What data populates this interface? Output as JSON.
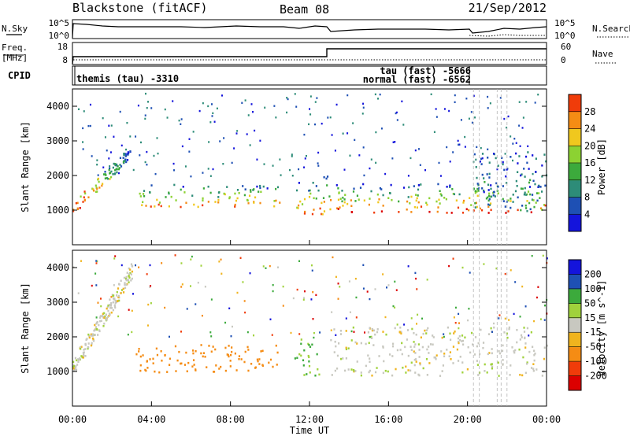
{
  "header": {
    "title": "Blackstone (fitACF)",
    "beam": "Beam 08",
    "date": "21/Sep/2012"
  },
  "nsky_panel": {
    "left_label": "N.Sky",
    "right_label": "N.Search",
    "left_ticks": [
      "10^5",
      "10^0"
    ],
    "right_ticks": [
      "10^5",
      "10^0"
    ]
  },
  "freq_panel": {
    "left_label_line1": "Freq.",
    "left_label_line2": "[MHz]",
    "right_label": "Nave",
    "left_ticks": [
      "18",
      "8"
    ],
    "right_ticks": [
      "60",
      "0"
    ]
  },
  "cpid_panel": {
    "label": "CPID",
    "entries": [
      {
        "text": "themis (tau)  -3310"
      },
      {
        "text": "tau (fast)  -5666"
      },
      {
        "text": "normal (fast)  -6562"
      }
    ]
  },
  "colors": {
    "power": [
      "#1414dc",
      "#1e50b4",
      "#2d8c78",
      "#3caa3c",
      "#8cd232",
      "#f0c81e",
      "#f58c14",
      "#f03c0a",
      "#dc0000"
    ],
    "velocity": [
      "#dc0000",
      "#f03c0a",
      "#f58c14",
      "#f0b41e",
      "#c8c8c0",
      "#a0d23c",
      "#3caa3c",
      "#1e50b4",
      "#1414dc"
    ],
    "line": "#000000",
    "dashed": "#b4b4b4"
  },
  "chart_data": [
    {
      "type": "heatmap",
      "name": "power",
      "ylabel": "Slant Range [km]",
      "ylim": [
        0,
        4500
      ],
      "y_ticks": [
        "1000",
        "2000",
        "3000",
        "4000"
      ],
      "xlim": [
        0,
        24
      ],
      "colorbar_label": "Power [dB]",
      "colorbar_ticks": [
        "4",
        "8",
        "12",
        "16",
        "20",
        "24",
        "28"
      ],
      "colorbar_range": [
        0,
        32
      ],
      "regions": [
        {
          "t": [
            0.0,
            2.9
          ],
          "r": [
            850,
            2600
          ],
          "level": 8
        },
        {
          "t": [
            3.2,
            10.5
          ],
          "r": [
            1100,
            1800
          ],
          "level": 6
        },
        {
          "t": [
            11.2,
            13.0
          ],
          "r": [
            900,
            2000
          ],
          "level": 6
        },
        {
          "t": [
            13.0,
            24.0
          ],
          "r": [
            950,
            1800
          ],
          "level": 7
        },
        {
          "t": [
            20.3,
            24.0
          ],
          "r": [
            1000,
            2700
          ],
          "level": 2
        }
      ]
    },
    {
      "type": "heatmap",
      "name": "velocity",
      "ylabel": "Slant Range [km]",
      "ylim": [
        0,
        4500
      ],
      "y_ticks": [
        "1000",
        "2000",
        "3000",
        "4000"
      ],
      "xlim": [
        0,
        24
      ],
      "xlabel": "Time UT",
      "x_ticks": [
        "00:00",
        "04:00",
        "08:00",
        "12:00",
        "16:00",
        "20:00",
        "00:00"
      ],
      "colorbar_label": "Velocity [m s^-1]",
      "colorbar_ticks": [
        "-200",
        "-100",
        "-50",
        "-15",
        "15",
        "50",
        "100",
        "200"
      ],
      "regions": [
        {
          "t": [
            0.0,
            3.0
          ],
          "r": [
            850,
            4300
          ],
          "value": 0
        },
        {
          "t": [
            3.2,
            10.5
          ],
          "r": [
            1000,
            1800
          ],
          "value": -60
        },
        {
          "t": [
            11.2,
            12.5
          ],
          "r": [
            900,
            2000
          ],
          "value": 30
        },
        {
          "t": [
            13.0,
            24.0
          ],
          "r": [
            900,
            2300
          ],
          "value": 0
        }
      ]
    }
  ]
}
